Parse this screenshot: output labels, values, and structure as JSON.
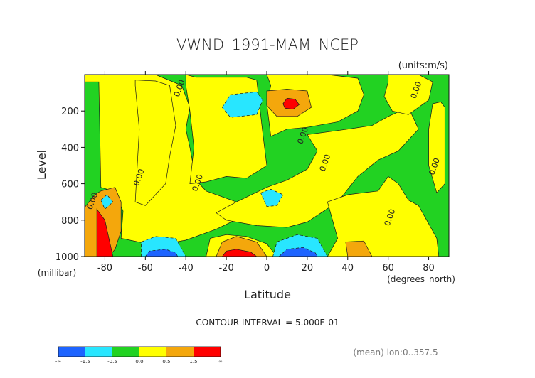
{
  "chart_data": {
    "type": "filled-contour",
    "title": "VWND_1991-MAM_NCEP",
    "units_note": "(units:m/s)",
    "xlabel": "Latitude",
    "x_unit_note": "(degrees_north)",
    "ylabel": "Level",
    "y_unit_note": "(millibar)",
    "xlim": [
      -90,
      90
    ],
    "ylim": [
      1000,
      0
    ],
    "y_inverted": true,
    "x_ticks": [
      "-80",
      "-60",
      "-40",
      "-20",
      "0",
      "20",
      "40",
      "60",
      "80"
    ],
    "x_tick_values": [
      -80,
      -60,
      -40,
      -20,
      0,
      20,
      40,
      60,
      80
    ],
    "y_ticks": [
      "200",
      "400",
      "600",
      "800",
      "1000"
    ],
    "y_tick_values": [
      200,
      400,
      600,
      800,
      1000
    ],
    "contour_interval_text": "CONTOUR INTERVAL = 5.000E-01",
    "contour_labels": [
      "0.00",
      "0.00",
      "0.00",
      "0.00",
      "0.00",
      "0.00",
      "0.00",
      "0.00",
      "0.00"
    ],
    "footer_note": "(mean) lon:0..357.5",
    "colorbar": {
      "labels": [
        "-∞",
        "-1.5",
        "-0.5",
        "0.0",
        "0.5",
        "1.5",
        "∞"
      ],
      "colors": [
        "#1e64ff",
        "#28e6ff",
        "#22d222",
        "#ffff00",
        "#f4a70c",
        "#ff0000"
      ]
    },
    "background_color": "#22d222",
    "regions": [
      {
        "sign": "positive",
        "level": 0.0,
        "color": "#ffff00",
        "pts": [
          [
            -90,
            40
          ],
          [
            -83,
            40
          ],
          [
            -82,
            620
          ],
          [
            -76,
            640
          ],
          [
            -73,
            700
          ],
          [
            -71,
            750
          ],
          [
            -72,
            900
          ],
          [
            -55,
            940
          ],
          [
            -40,
            910
          ],
          [
            -25,
            850
          ],
          [
            -10,
            770
          ],
          [
            -15,
            700
          ],
          [
            -30,
            640
          ],
          [
            -35,
            580
          ],
          [
            -38,
            400
          ],
          [
            -40,
            300
          ],
          [
            -38,
            180
          ],
          [
            -42,
            60
          ],
          [
            -55,
            0
          ],
          [
            -90,
            0
          ]
        ]
      },
      {
        "sign": "positive",
        "level": 0.0,
        "color": "#ffff00",
        "pts": [
          [
            -65,
            30
          ],
          [
            -55,
            35
          ],
          [
            -48,
            60
          ],
          [
            -45,
            280
          ],
          [
            -48,
            450
          ],
          [
            -50,
            600
          ],
          [
            -60,
            720
          ],
          [
            -65,
            700
          ],
          [
            -63,
            300
          ],
          [
            -65,
            60
          ]
        ]
      },
      {
        "sign": "positive",
        "level": 0.0,
        "color": "#ffff00",
        "pts": [
          [
            -40,
            0
          ],
          [
            -35,
            15
          ],
          [
            -10,
            15
          ],
          [
            -5,
            30
          ],
          [
            -2,
            320
          ],
          [
            0,
            500
          ],
          [
            -10,
            570
          ],
          [
            -20,
            560
          ],
          [
            -30,
            590
          ],
          [
            -38,
            600
          ],
          [
            -36,
            400
          ],
          [
            -38,
            200
          ],
          [
            -40,
            60
          ]
        ]
      },
      {
        "sign": "positive",
        "level": 0.0,
        "color": "#ffff00",
        "pts": [
          [
            0,
            0
          ],
          [
            30,
            0
          ],
          [
            45,
            20
          ],
          [
            48,
            110
          ],
          [
            45,
            200
          ],
          [
            35,
            260
          ],
          [
            20,
            290
          ],
          [
            10,
            300
          ],
          [
            2,
            340
          ],
          [
            0,
            160
          ],
          [
            2,
            60
          ]
        ]
      },
      {
        "sign": "positive",
        "level": 0.0,
        "color": "#ffff00",
        "pts": [
          [
            20,
            330
          ],
          [
            40,
            300
          ],
          [
            52,
            280
          ],
          [
            60,
            230
          ],
          [
            70,
            180
          ],
          [
            75,
            300
          ],
          [
            65,
            420
          ],
          [
            55,
            470
          ],
          [
            45,
            560
          ],
          [
            35,
            700
          ],
          [
            20,
            810
          ],
          [
            10,
            840
          ],
          [
            -5,
            830
          ],
          [
            -20,
            800
          ],
          [
            -25,
            760
          ],
          [
            -15,
            700
          ],
          [
            0,
            620
          ],
          [
            10,
            580
          ],
          [
            20,
            520
          ],
          [
            25,
            420
          ]
        ]
      },
      {
        "sign": "positive",
        "level": 0.0,
        "color": "#ffff00",
        "pts": [
          [
            30,
            700
          ],
          [
            40,
            660
          ],
          [
            55,
            640
          ],
          [
            60,
            560
          ],
          [
            65,
            600
          ],
          [
            70,
            690
          ],
          [
            75,
            720
          ],
          [
            80,
            820
          ],
          [
            84,
            900
          ],
          [
            85,
            1000
          ],
          [
            30,
            1000
          ],
          [
            35,
            900
          ]
        ]
      },
      {
        "sign": "positive",
        "level": 0.0,
        "color": "#ffff00",
        "pts": [
          [
            60,
            0
          ],
          [
            75,
            0
          ],
          [
            82,
            40
          ],
          [
            80,
            140
          ],
          [
            70,
            220
          ],
          [
            62,
            200
          ],
          [
            58,
            120
          ],
          [
            60,
            40
          ]
        ]
      },
      {
        "sign": "positive",
        "level": 0.0,
        "color": "#ffff00",
        "pts": [
          [
            82,
            160
          ],
          [
            86,
            150
          ],
          [
            88,
            180
          ],
          [
            88,
            600
          ],
          [
            84,
            650
          ],
          [
            80,
            500
          ],
          [
            80,
            300
          ]
        ]
      },
      {
        "sign": "positive",
        "level": 0.0,
        "color": "#ffff00",
        "pts": [
          [
            -30,
            1000
          ],
          [
            -28,
            900
          ],
          [
            -20,
            880
          ],
          [
            -10,
            890
          ],
          [
            0,
            930
          ],
          [
            5,
            1000
          ]
        ]
      },
      {
        "sign": "positive",
        "level": 0.5,
        "color": "#f4a70c",
        "pts": [
          [
            -90,
            730
          ],
          [
            -85,
            660
          ],
          [
            -82,
            640
          ],
          [
            -75,
            620
          ],
          [
            -72,
            700
          ],
          [
            -72,
            860
          ],
          [
            -75,
            960
          ],
          [
            -78,
            1000
          ],
          [
            -90,
            1000
          ]
        ]
      },
      {
        "sign": "positive",
        "level": 0.5,
        "color": "#f4a70c",
        "pts": [
          [
            -25,
            1000
          ],
          [
            -22,
            920
          ],
          [
            -15,
            890
          ],
          [
            -5,
            920
          ],
          [
            0,
            1000
          ]
        ]
      },
      {
        "sign": "positive",
        "level": 0.5,
        "color": "#f4a70c",
        "pts": [
          [
            0,
            90
          ],
          [
            10,
            80
          ],
          [
            20,
            90
          ],
          [
            22,
            180
          ],
          [
            15,
            230
          ],
          [
            5,
            230
          ],
          [
            0,
            170
          ]
        ]
      },
      {
        "sign": "positive",
        "level": 0.5,
        "color": "#f4a70c",
        "pts": [
          [
            40,
            1000
          ],
          [
            39,
            920
          ],
          [
            48,
            915
          ],
          [
            52,
            1000
          ]
        ]
      },
      {
        "sign": "positive",
        "level": 1.5,
        "color": "#ff0000",
        "pts": [
          [
            -84,
            740
          ],
          [
            -80,
            800
          ],
          [
            -78,
            900
          ],
          [
            -76,
            1000
          ],
          [
            -84,
            1000
          ]
        ]
      },
      {
        "sign": "positive",
        "level": 1.5,
        "color": "#ff0000",
        "pts": [
          [
            -22,
            1000
          ],
          [
            -20,
            970
          ],
          [
            -15,
            960
          ],
          [
            -8,
            975
          ],
          [
            -5,
            1000
          ]
        ]
      },
      {
        "sign": "positive",
        "level": 1.5,
        "color": "#ff0000",
        "pts": [
          [
            8,
            160
          ],
          [
            10,
            130
          ],
          [
            14,
            135
          ],
          [
            16,
            165
          ],
          [
            13,
            190
          ],
          [
            9,
            185
          ]
        ]
      },
      {
        "sign": "negative",
        "level": -0.5,
        "color": "#28e6ff",
        "pts": [
          [
            -62,
            1000
          ],
          [
            -62,
            920
          ],
          [
            -55,
            890
          ],
          [
            -45,
            900
          ],
          [
            -42,
            960
          ],
          [
            -40,
            1000
          ]
        ]
      },
      {
        "sign": "negative",
        "level": -0.5,
        "color": "#28e6ff",
        "pts": [
          [
            3,
            1000
          ],
          [
            5,
            920
          ],
          [
            15,
            880
          ],
          [
            25,
            900
          ],
          [
            28,
            960
          ],
          [
            30,
            1000
          ]
        ]
      },
      {
        "sign": "negative",
        "level": -0.5,
        "color": "#28e6ff",
        "pts": [
          [
            -22,
            180
          ],
          [
            -18,
            110
          ],
          [
            -5,
            95
          ],
          [
            -2,
            140
          ],
          [
            -5,
            220
          ],
          [
            -18,
            235
          ]
        ]
      },
      {
        "sign": "negative",
        "level": -0.5,
        "color": "#28e6ff",
        "pts": [
          [
            -3,
            650
          ],
          [
            2,
            630
          ],
          [
            8,
            660
          ],
          [
            5,
            720
          ],
          [
            0,
            725
          ]
        ]
      },
      {
        "sign": "negative",
        "level": -0.5,
        "color": "#28e6ff",
        "pts": [
          [
            -82,
            690
          ],
          [
            -79,
            660
          ],
          [
            -76,
            700
          ],
          [
            -80,
            740
          ]
        ]
      },
      {
        "sign": "negative",
        "level": -1.5,
        "color": "#1e64ff",
        "pts": [
          [
            -60,
            1000
          ],
          [
            -58,
            970
          ],
          [
            -50,
            960
          ],
          [
            -45,
            980
          ],
          [
            -44,
            1000
          ]
        ]
      },
      {
        "sign": "negative",
        "level": -1.5,
        "color": "#1e64ff",
        "pts": [
          [
            6,
            1000
          ],
          [
            10,
            960
          ],
          [
            18,
            950
          ],
          [
            24,
            980
          ],
          [
            25,
            1000
          ]
        ]
      }
    ],
    "label_positions": [
      [
        -85,
        700
      ],
      [
        -42,
        80
      ],
      [
        -33,
        600
      ],
      [
        19,
        340
      ],
      [
        30,
        490
      ],
      [
        62,
        790
      ],
      [
        75,
        90
      ],
      [
        84,
        510
      ],
      [
        -62,
        570
      ]
    ]
  }
}
